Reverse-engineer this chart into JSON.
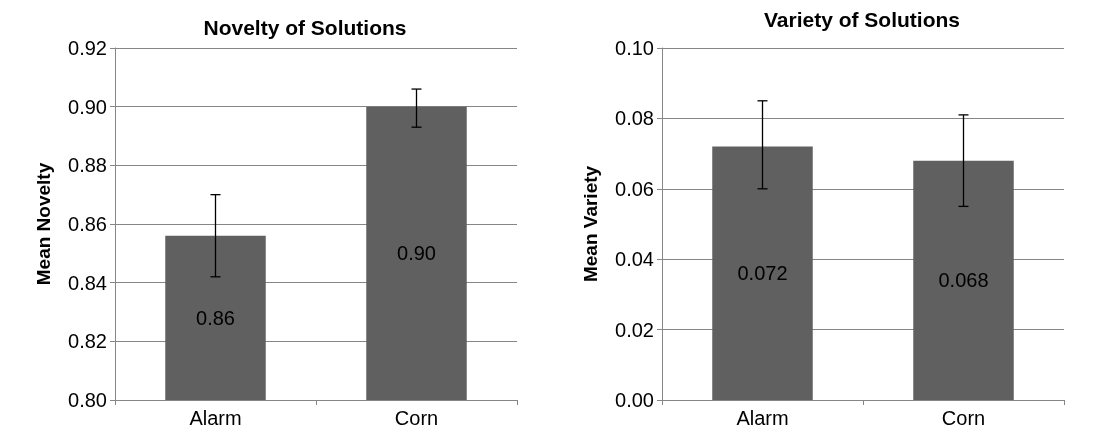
{
  "chart_data": [
    {
      "type": "bar",
      "title": "Novelty of Solutions",
      "ylabel": "Mean Novelty",
      "categories": [
        "Alarm",
        "Corn"
      ],
      "values": [
        0.856,
        0.9
      ],
      "color": "#606060",
      "errors": [
        [
          0.842,
          0.87
        ],
        [
          0.893,
          0.906
        ]
      ],
      "value_labels": [
        "0.86",
        "0.90"
      ],
      "ylim": [
        0.8,
        0.92
      ],
      "yticks": [
        {
          "value": 0.8,
          "label": "0.80"
        },
        {
          "value": 0.82,
          "label": "0.82"
        },
        {
          "value": 0.84,
          "label": "0.84"
        },
        {
          "value": 0.86,
          "label": "0.86"
        },
        {
          "value": 0.88,
          "label": "0.88"
        },
        {
          "value": 0.9,
          "label": "0.90"
        },
        {
          "value": 0.92,
          "label": "0.92"
        }
      ],
      "grid": "y"
    },
    {
      "type": "bar",
      "title": "Variety of Solutions",
      "ylabel": "Mean Variety",
      "categories": [
        "Alarm",
        "Corn"
      ],
      "values": [
        0.072,
        0.068
      ],
      "color": "#606060",
      "errors": [
        [
          0.06,
          0.085
        ],
        [
          0.055,
          0.081
        ]
      ],
      "value_labels": [
        "0.072",
        "0.068"
      ],
      "ylim": [
        0.0,
        0.1
      ],
      "yticks": [
        {
          "value": 0.0,
          "label": "0.00"
        },
        {
          "value": 0.02,
          "label": "0.02"
        },
        {
          "value": 0.04,
          "label": "0.04"
        },
        {
          "value": 0.06,
          "label": "0.06"
        },
        {
          "value": 0.08,
          "label": "0.08"
        },
        {
          "value": 0.1,
          "label": "0.10"
        }
      ],
      "grid": "y"
    }
  ]
}
